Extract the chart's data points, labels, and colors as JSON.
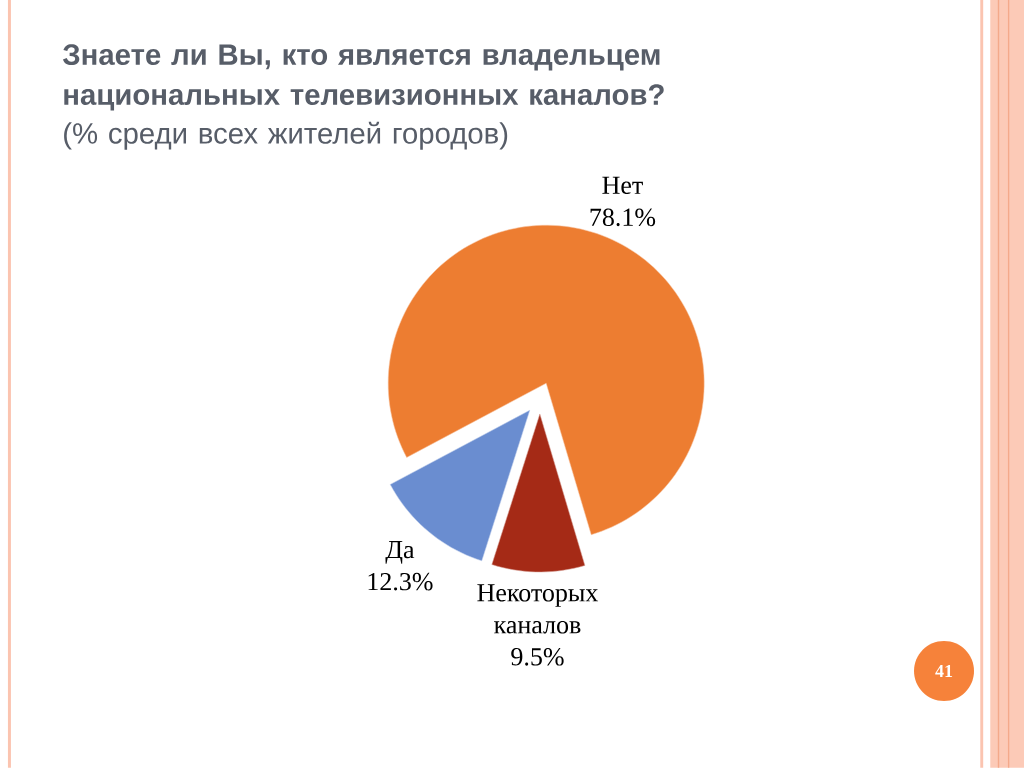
{
  "chart_data": {
    "type": "pie",
    "title": "Знаете ли Вы, кто является владельцем национальных телевизионных каналов?",
    "subtitle": "(% среди всех жителей городов)",
    "categories": [
      "Да",
      "Некоторых каналов",
      "Нет"
    ],
    "values": [
      12.3,
      9.5,
      78.1
    ],
    "colors": [
      "#6a8dd0",
      "#a52a16",
      "#ed7d31"
    ],
    "value_labels": [
      "12.3%",
      "9.5%",
      "78.1%"
    ],
    "annotations": [
      "41"
    ]
  }
}
